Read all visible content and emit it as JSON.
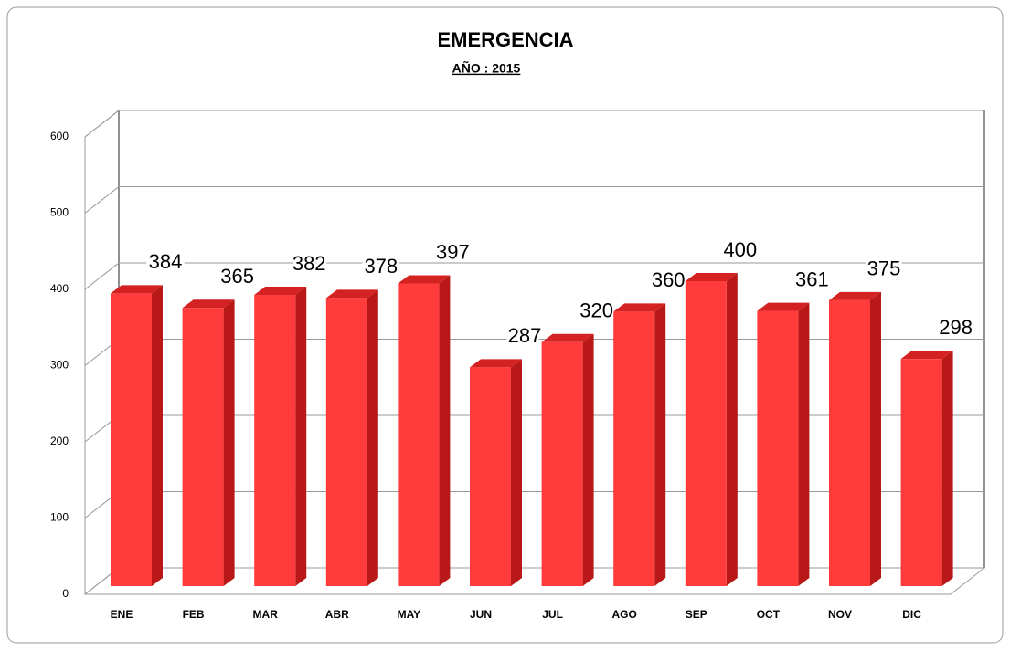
{
  "chart_data": {
    "type": "bar",
    "title": "EMERGENCIA",
    "subtitle": "AÑO : 2015",
    "categories": [
      "ENE",
      "FEB",
      "MAR",
      "ABR",
      "MAY",
      "JUN",
      "JUL",
      "AGO",
      "SEP",
      "OCT",
      "NOV",
      "DIC"
    ],
    "values": [
      384,
      365,
      382,
      378,
      397,
      287,
      320,
      360,
      400,
      361,
      375,
      298
    ],
    "color": "#ff3b3b",
    "ylim": [
      0,
      600
    ],
    "yticks": [
      0,
      100,
      200,
      300,
      400,
      500,
      600
    ],
    "grid": true
  }
}
